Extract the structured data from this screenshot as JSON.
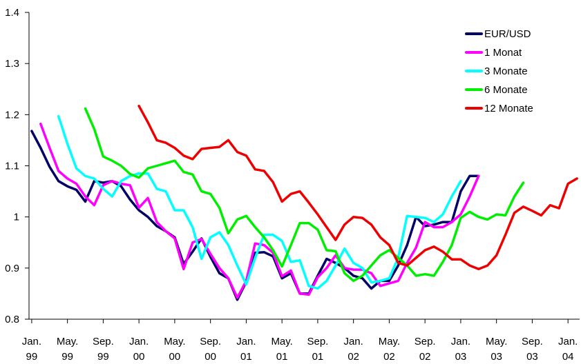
{
  "chart_data": {
    "type": "line",
    "title": "",
    "xlabel": "",
    "ylabel": "",
    "ylim": [
      0.8,
      1.4
    ],
    "y_ticks": [
      0.8,
      0.9,
      1,
      1.1,
      1.2,
      1.3,
      1.4
    ],
    "y_tick_labels": [
      "0.8",
      "0.9",
      "1",
      "1.1",
      "1.2",
      "1.3",
      "1.4"
    ],
    "x_tick_labels": [
      [
        "Jan.",
        "99"
      ],
      [
        "May.",
        "99"
      ],
      [
        "Sep.",
        "99"
      ],
      [
        "Jan.",
        "00"
      ],
      [
        "May.",
        "00"
      ],
      [
        "Sep.",
        "00"
      ],
      [
        "Jan.",
        "01"
      ],
      [
        "May.",
        "01"
      ],
      [
        "Sep.",
        "01"
      ],
      [
        "Jan.",
        "02"
      ],
      [
        "May.",
        "02"
      ],
      [
        "Sep.",
        "02"
      ],
      [
        "Jan.",
        "03"
      ],
      [
        "May.",
        "03"
      ],
      [
        "Sep.",
        "03"
      ],
      [
        "Jan.",
        "04"
      ]
    ],
    "x_unit": "month index from Jan. 99",
    "xlim": [
      -0.3,
      61.3
    ],
    "grid": false,
    "legend_position": "top-right",
    "series": [
      {
        "name": "EUR/USD",
        "color": "#000066",
        "start": 0,
        "values": [
          1.168,
          1.135,
          1.098,
          1.07,
          1.06,
          1.053,
          1.03,
          1.07,
          1.067,
          1.07,
          1.06,
          1.034,
          1.013,
          1.0,
          0.982,
          0.972,
          0.96,
          0.908,
          0.932,
          0.958,
          0.922,
          0.89,
          0.88,
          0.838,
          0.873,
          0.93,
          0.931,
          0.923,
          0.88,
          0.89,
          0.85,
          0.85,
          0.885,
          0.918,
          0.91,
          0.9,
          0.885,
          0.88,
          0.86,
          0.875,
          0.875,
          0.905,
          0.945,
          1.0,
          0.982,
          0.985,
          0.99,
          0.99,
          1.05,
          1.08,
          1.08
        ]
      },
      {
        "name": "1 Monat",
        "color": "#ff00ff",
        "start": 1,
        "values": [
          1.182,
          1.135,
          1.09,
          1.075,
          1.065,
          1.04,
          1.023,
          1.062,
          1.07,
          1.065,
          1.062,
          1.018,
          1.037,
          0.99,
          0.972,
          0.958,
          0.898,
          0.95,
          0.957,
          0.928,
          0.9,
          0.88,
          0.842,
          0.875,
          0.948,
          0.945,
          0.93,
          0.884,
          0.895,
          0.85,
          0.848,
          0.882,
          0.9,
          0.925,
          0.9,
          0.897,
          0.897,
          0.89,
          0.865,
          0.87,
          0.875,
          0.91,
          0.94,
          0.99,
          0.98,
          0.98,
          0.99,
          1.005,
          1.04,
          1.08
        ]
      },
      {
        "name": "3 Monate",
        "color": "#00ffff",
        "start": 3,
        "values": [
          1.197,
          1.143,
          1.095,
          1.08,
          1.075,
          1.055,
          1.04,
          1.07,
          1.08,
          1.085,
          1.085,
          1.055,
          1.05,
          1.013,
          1.013,
          0.98,
          0.918,
          0.96,
          0.97,
          0.945,
          0.905,
          0.868,
          0.92,
          0.965,
          0.965,
          0.953,
          0.912,
          0.915,
          0.865,
          0.86,
          0.875,
          0.905,
          0.938,
          0.91,
          0.9,
          0.872,
          0.875,
          0.88,
          0.92,
          1.002,
          1.0,
          0.998,
          0.99,
          1.005,
          1.04,
          1.07
        ]
      },
      {
        "name": "6 Monate",
        "color": "#00ee00",
        "start": 6,
        "values": [
          1.212,
          1.172,
          1.118,
          1.11,
          1.1,
          1.084,
          1.077,
          1.095,
          1.1,
          1.105,
          1.11,
          1.088,
          1.083,
          1.05,
          1.045,
          1.018,
          0.968,
          0.995,
          1.002,
          0.98,
          0.96,
          0.935,
          0.903,
          0.945,
          0.988,
          0.988,
          0.975,
          0.935,
          0.933,
          0.89,
          0.875,
          0.885,
          0.905,
          0.925,
          0.935,
          0.92,
          0.905,
          0.885,
          0.888,
          0.885,
          0.912,
          0.945,
          0.998,
          1.01,
          1.0,
          0.995,
          1.005,
          1.003,
          1.04,
          1.067
        ]
      },
      {
        "name": "12 Monate",
        "color": "#ee0000",
        "start": 12,
        "values": [
          1.217,
          1.185,
          1.15,
          1.145,
          1.135,
          1.12,
          1.113,
          1.133,
          1.135,
          1.137,
          1.15,
          1.127,
          1.12,
          1.093,
          1.09,
          1.068,
          1.03,
          1.045,
          1.05,
          1.028,
          1.005,
          0.98,
          0.955,
          0.985,
          1.0,
          0.998,
          0.985,
          0.96,
          0.945,
          0.91,
          0.905,
          0.92,
          0.935,
          0.942,
          0.932,
          0.917,
          0.917,
          0.905,
          0.898,
          0.905,
          0.925,
          0.965,
          1.008,
          1.02,
          1.012,
          1.003,
          1.023,
          1.017,
          1.065,
          1.075
        ]
      }
    ]
  }
}
